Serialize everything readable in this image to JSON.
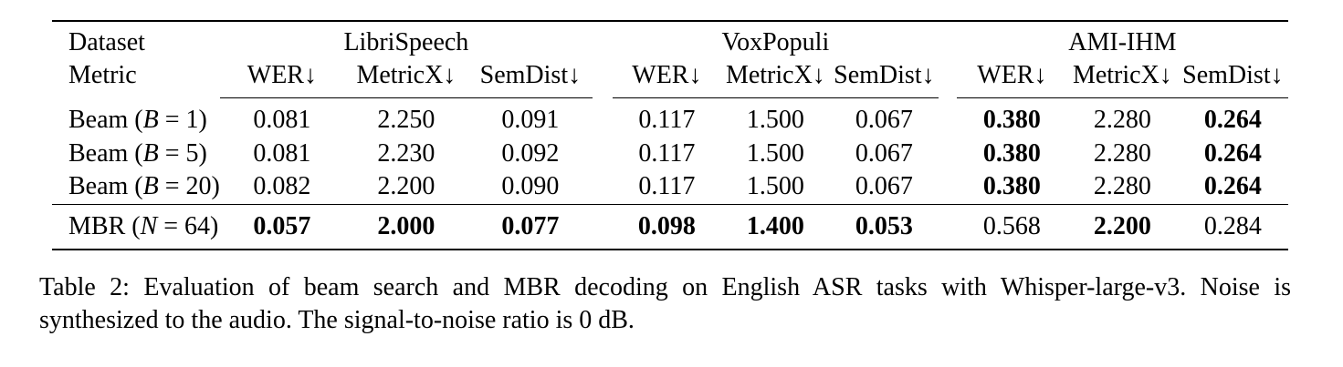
{
  "page": {
    "background_color": "#ffffff",
    "text_color": "#000000"
  },
  "table": {
    "header": {
      "dataset_label": "Dataset",
      "metric_label": "Metric",
      "groups": [
        {
          "name": "LibriSpeech",
          "metrics": [
            "WER↓",
            "MetricX↓",
            "SemDist↓"
          ]
        },
        {
          "name": "VoxPopuli",
          "metrics": [
            "WER↓",
            "MetricX↓",
            "SemDist↓"
          ]
        },
        {
          "name": "AMI-IHM",
          "metrics": [
            "WER↓",
            "MetricX↓",
            "SemDist↓"
          ]
        }
      ]
    },
    "rows": [
      {
        "label": {
          "pre": "Beam (",
          "var": "B",
          "post": " = 1)"
        },
        "values": [
          "0.081",
          "2.250",
          "0.091",
          "0.117",
          "1.500",
          "0.067",
          "0.380",
          "2.280",
          "0.264"
        ]
      },
      {
        "label": {
          "pre": "Beam (",
          "var": "B",
          "post": " = 5)"
        },
        "values": [
          "0.081",
          "2.230",
          "0.092",
          "0.117",
          "1.500",
          "0.067",
          "0.380",
          "2.280",
          "0.264"
        ]
      },
      {
        "label": {
          "pre": "Beam (",
          "var": "B",
          "post": " = 20)"
        },
        "values": [
          "0.082",
          "2.200",
          "0.090",
          "0.117",
          "1.500",
          "0.067",
          "0.380",
          "2.280",
          "0.264"
        ]
      },
      {
        "label": {
          "pre": "MBR (",
          "var": "N",
          "post": " = 64)"
        },
        "values": [
          "0.057",
          "2.000",
          "0.077",
          "0.098",
          "1.400",
          "0.053",
          "0.568",
          "2.200",
          "0.284"
        ]
      }
    ]
  },
  "caption": {
    "line1": "Table 2: Evaluation of beam search and MBR decoding on English ASR tasks with Whisper-large-v3. Noise is",
    "line2": "synthesized to the audio. The signal-to-noise ratio is 0 dB."
  }
}
